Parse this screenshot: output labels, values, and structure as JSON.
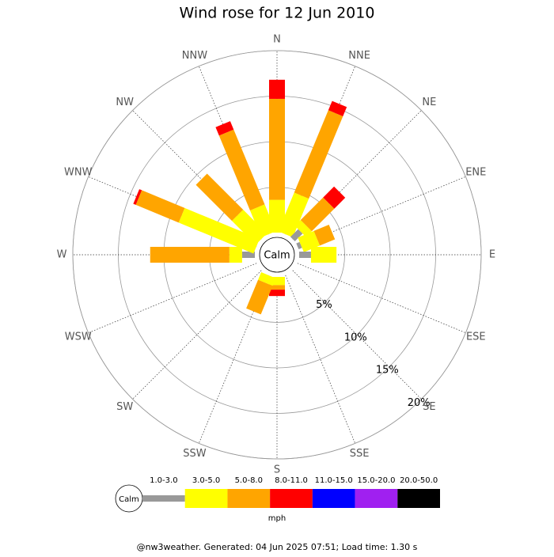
{
  "chart_data": {
    "type": "windrose",
    "title": "Wind rose for 12 Jun 2010",
    "categories": [
      "N",
      "NNE",
      "NE",
      "ENE",
      "E",
      "ESE",
      "SE",
      "SSE",
      "S",
      "SSW",
      "SW",
      "WSW",
      "W",
      "WNW",
      "NW",
      "NNW"
    ],
    "center_label": "Calm",
    "rlim": [
      0,
      20
    ],
    "rticks": [
      {
        "value": 5,
        "label": "5%"
      },
      {
        "value": 10,
        "label": "10%"
      },
      {
        "value": 15,
        "label": "15%"
      },
      {
        "value": 20,
        "label": "20%"
      }
    ],
    "unit": "mph",
    "series": [
      {
        "name": "1.0-3.0",
        "color": "#999999",
        "values": [
          0,
          0,
          1.2,
          0.4,
          1.3,
          0,
          0,
          0,
          0,
          0,
          0,
          0,
          1.4,
          0,
          0,
          0
        ]
      },
      {
        "name": "3.0-5.0",
        "color": "#ffff00",
        "values": [
          3.6,
          4.6,
          0.9,
          1.9,
          2.8,
          0,
          0,
          0,
          0.9,
          0.9,
          0,
          0,
          1.4,
          8.9,
          3.7,
          3.2
        ]
      },
      {
        "name": "5.0-8.0",
        "color": "#ffa500",
        "values": [
          11.1,
          9.8,
          3.5,
          1.8,
          0,
          0,
          0,
          0,
          0.5,
          3.4,
          0,
          0,
          8.7,
          5.1,
          5.6,
          8.9
        ]
      },
      {
        "name": "8.0-11.0",
        "color": "#ff0000",
        "values": [
          2.1,
          1.1,
          1.7,
          0,
          0,
          0,
          0,
          0,
          0.7,
          0,
          0,
          0,
          0,
          0.3,
          0,
          1.0
        ]
      },
      {
        "name": "11.0-15.0",
        "color": "#0000ff",
        "values": [
          0,
          0,
          0,
          0,
          0,
          0,
          0,
          0,
          0,
          0,
          0,
          0,
          0,
          0,
          0,
          0
        ]
      },
      {
        "name": "15.0-20.0",
        "color": "#a020f0",
        "values": [
          0,
          0,
          0,
          0,
          0,
          0,
          0,
          0,
          0,
          0,
          0,
          0,
          0,
          0,
          0,
          0
        ]
      },
      {
        "name": "20.0-50.0",
        "color": "#000000",
        "values": [
          0,
          0,
          0,
          0,
          0,
          0,
          0,
          0,
          0,
          0,
          0,
          0,
          0,
          0,
          0,
          0
        ]
      }
    ],
    "footer": "@nw3weather. Generated: 04 Jun 2025 07:51; Load time: 1.30 s"
  }
}
